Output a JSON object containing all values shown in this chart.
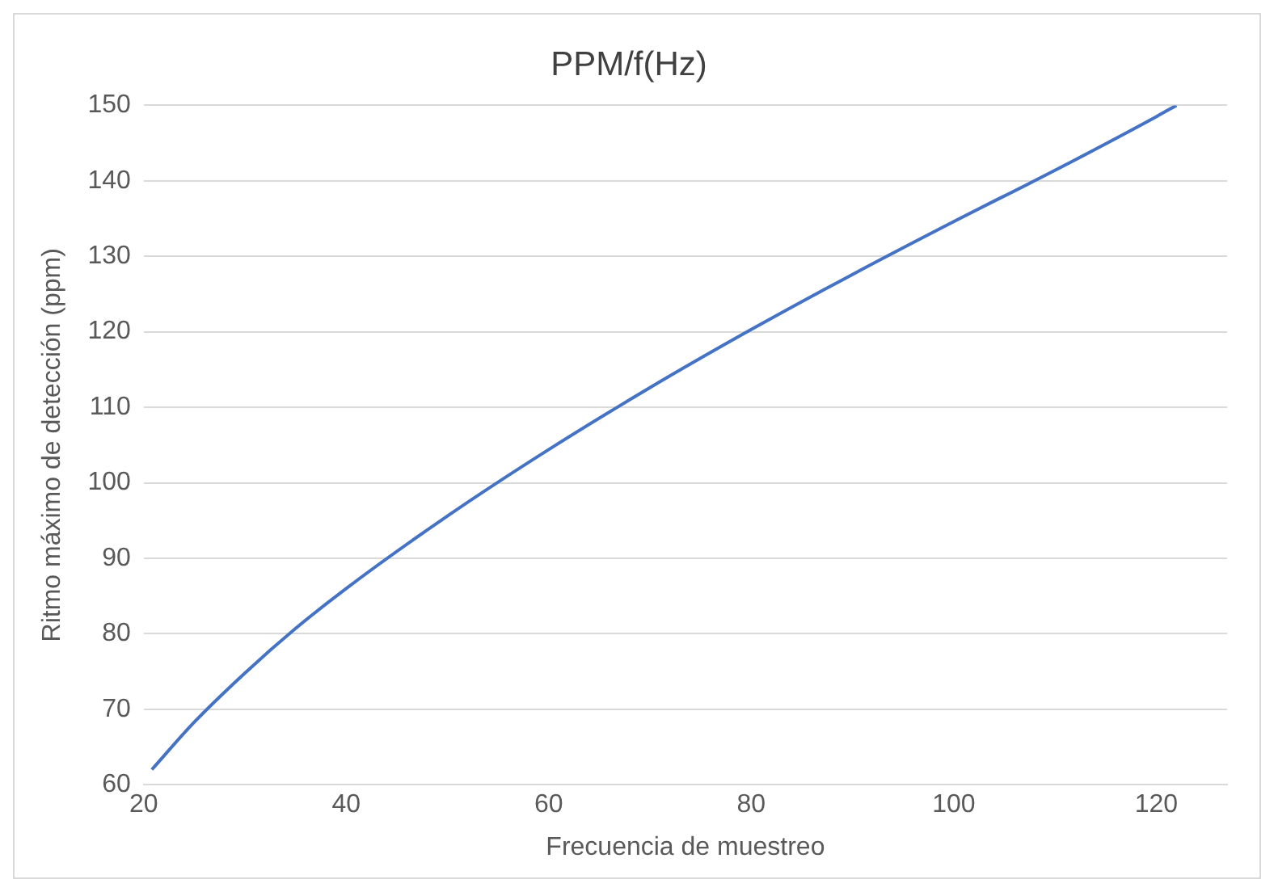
{
  "chart_data": {
    "type": "line",
    "title": "PPM/f(Hz)",
    "xlabel": "Frecuencia de muestreo",
    "ylabel": "Ritmo máximo de detección (ppm)",
    "series": [
      {
        "color": "#4472c4",
        "x": [
          20.8,
          25,
          30,
          35,
          40,
          50,
          60,
          70,
          80,
          90,
          100,
          110,
          120,
          122
        ],
        "values": [
          62,
          68.3,
          74.8,
          80.7,
          86,
          95.6,
          104.4,
          112.6,
          120.3,
          127.6,
          134.6,
          141.4,
          148.5,
          150
        ]
      }
    ],
    "xlim": [
      20,
      127
    ],
    "xticks": [
      20,
      40,
      60,
      80,
      100,
      120
    ],
    "ylim": [
      60,
      150
    ],
    "yticks": [
      60,
      70,
      80,
      90,
      100,
      110,
      120,
      130,
      140,
      150
    ],
    "grid": "y",
    "legend": false,
    "marker": "none",
    "line_style": "solid"
  }
}
